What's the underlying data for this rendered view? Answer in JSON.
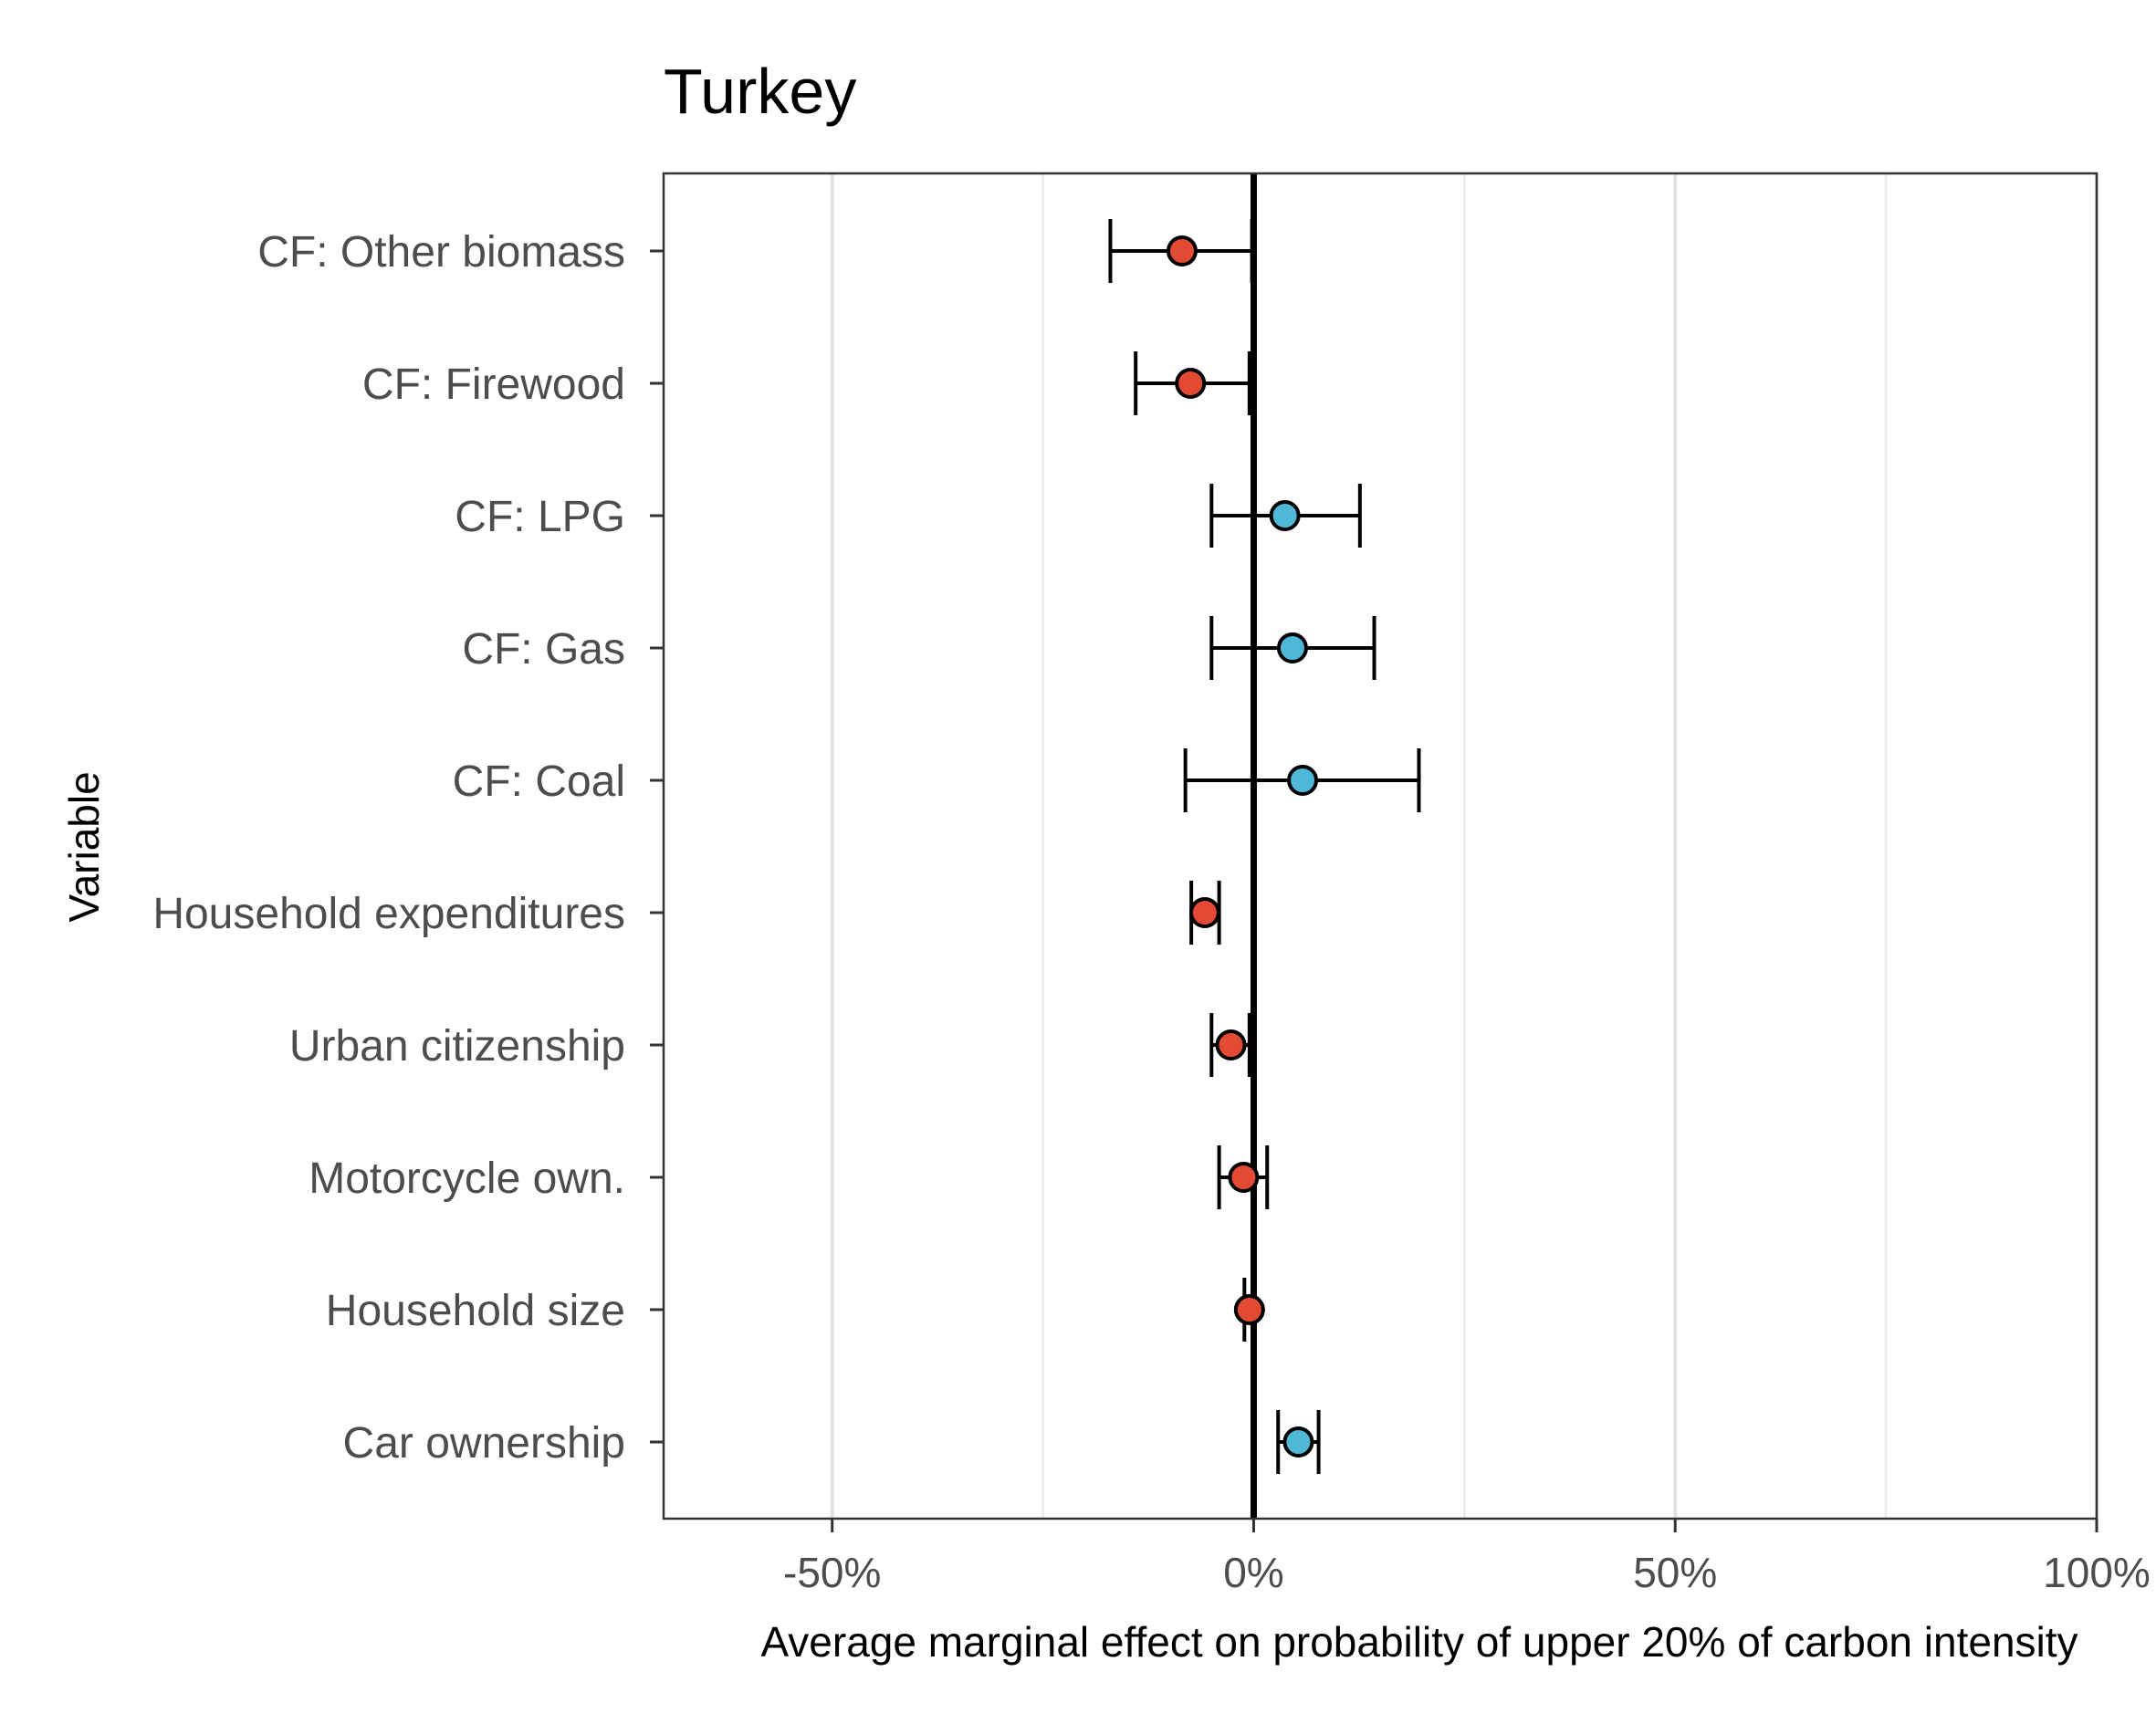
{
  "chart_data": {
    "type": "scatter",
    "title": "Turkey",
    "xlabel": "Average marginal effect on probability of upper 20% of carbon intensity",
    "ylabel": "Variable",
    "xlim": [
      -70,
      100
    ],
    "grid": "vertical",
    "x_ticks": [
      {
        "value": -50,
        "label": "-50%"
      },
      {
        "value": 0,
        "label": "0%"
      },
      {
        "value": 50,
        "label": "50%"
      },
      {
        "value": 100,
        "label": "100%"
      }
    ],
    "minor_gridlines": [
      -25,
      25,
      75
    ],
    "reference_line": 0,
    "colors": {
      "negative": "#e24a33",
      "positive": "#4fb8d6",
      "stroke": "#000000"
    },
    "categories": [
      "CF: Other biomass",
      "CF: Firewood",
      "CF: LPG",
      "CF: Gas",
      "CF: Coal",
      "Household expenditures",
      "Urban citizenship",
      "Motorcycle own.",
      "Household size",
      "Car ownership"
    ],
    "points": [
      {
        "label": "CF: Other biomass",
        "estimate": -8.5,
        "lower": -17.0,
        "upper": -0.2,
        "sign": "negative"
      },
      {
        "label": "CF: Firewood",
        "estimate": -7.5,
        "lower": -14.0,
        "upper": -0.5,
        "sign": "negative"
      },
      {
        "label": "CF: LPG",
        "estimate": 3.7,
        "lower": -5.0,
        "upper": 12.6,
        "sign": "positive"
      },
      {
        "label": "CF: Gas",
        "estimate": 4.6,
        "lower": -5.0,
        "upper": 14.3,
        "sign": "positive"
      },
      {
        "label": "CF: Coal",
        "estimate": 5.8,
        "lower": -8.1,
        "upper": 19.6,
        "sign": "positive"
      },
      {
        "label": "Household expenditures",
        "estimate": -5.8,
        "lower": -7.4,
        "upper": -4.1,
        "sign": "negative"
      },
      {
        "label": "Urban citizenship",
        "estimate": -2.7,
        "lower": -5.0,
        "upper": -0.5,
        "sign": "negative"
      },
      {
        "label": "Motorcycle own.",
        "estimate": -1.2,
        "lower": -4.1,
        "upper": 1.6,
        "sign": "negative"
      },
      {
        "label": "Household size",
        "estimate": -0.5,
        "lower": -1.1,
        "upper": 0.0,
        "sign": "negative"
      },
      {
        "label": "Car ownership",
        "estimate": 5.3,
        "lower": 2.9,
        "upper": 7.7,
        "sign": "positive"
      }
    ]
  }
}
